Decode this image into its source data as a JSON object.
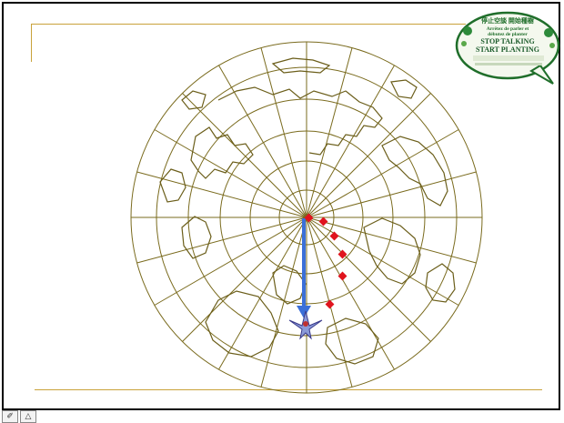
{
  "badge": {
    "line1": "停止空談 開始種樹",
    "line2": "Arrêtez de parler et",
    "line3": "débutez de planter",
    "line4": "STOP TALKING",
    "line5": "START PLANTING"
  },
  "toolbar": {
    "pen_icon_label": "✐",
    "pointer_icon_label": "△"
  },
  "colors": {
    "map_line": "#7a6b1e",
    "rule": "#c9a23a",
    "arrow": "#3b6fd8",
    "markers": "#e0141e",
    "badge_green": "#1f6e2a"
  },
  "markers": [
    {
      "name": "marker-1"
    },
    {
      "name": "marker-2"
    },
    {
      "name": "marker-3"
    },
    {
      "name": "marker-4"
    },
    {
      "name": "marker-5"
    },
    {
      "name": "marker-6"
    }
  ]
}
